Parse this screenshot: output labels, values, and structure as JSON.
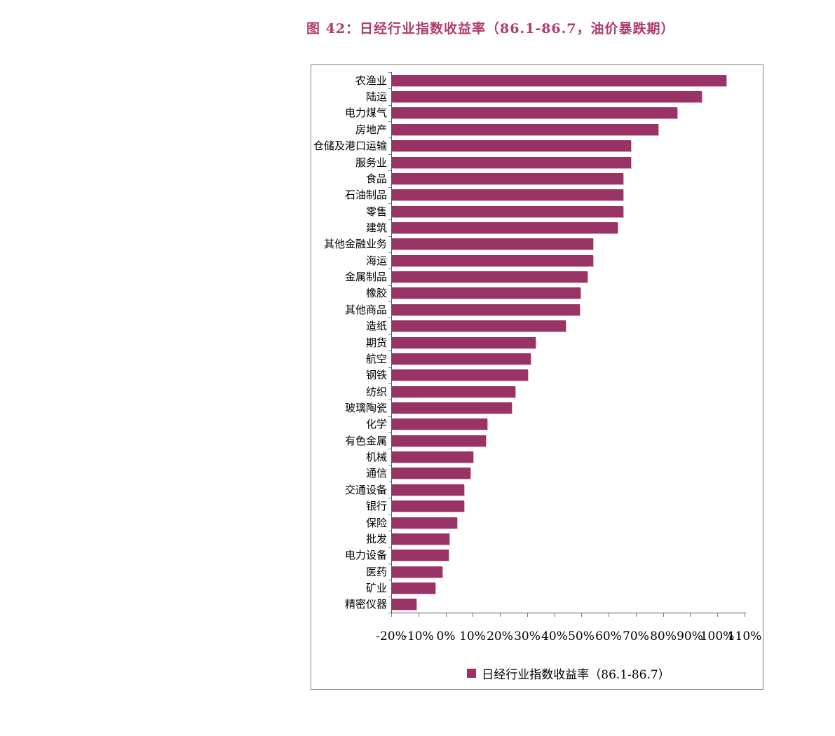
{
  "title": "图  42：日经行业指数收益率（86.1-86.7，油价暴跌期）",
  "colors": {
    "bar": "#993366",
    "bar_edge": "#E2B2CD",
    "title": "#B03A6B",
    "axis": "#595959",
    "tick": "#808080",
    "text": "#000000",
    "box_border": "#808080"
  },
  "legend": {
    "label": "日经行业指数收益率（86.1-86.7）"
  },
  "chart_data": {
    "type": "bar",
    "orientation": "horizontal",
    "title": "图  42：日经行业指数收益率（86.1-86.7，油价暴跌期）",
    "series_name": "日经行业指数收益率（86.1-86.7）",
    "unit": "%",
    "categories": [
      "农渔业",
      "陆运",
      "电力煤气",
      "房地产",
      "仓储及港口运输",
      "服务业",
      "食品",
      "石油制品",
      "零售",
      "建筑",
      "其他金融业务",
      "海运",
      "金属制品",
      "橡胶",
      "其他商品",
      "造纸",
      "期货",
      "航空",
      "钢铁",
      "纺织",
      "玻璃陶瓷",
      "化学",
      "有色金属",
      "机械",
      "通信",
      "交通设备",
      "银行",
      "保险",
      "批发",
      "电力设备",
      "医药",
      "矿业",
      "精密仪器"
    ],
    "values": [
      103,
      94,
      85,
      78,
      68,
      68,
      65,
      65,
      65,
      63,
      54,
      54,
      52,
      49.5,
      49,
      44,
      33,
      31,
      30,
      25.5,
      24,
      15,
      14.5,
      10,
      9,
      6.5,
      6.5,
      4,
      1.2,
      0.8,
      -1.5,
      -4,
      -11
    ],
    "xlim": [
      -20,
      110
    ],
    "x_tick_step": 10,
    "x_ticks": [
      "-20%",
      "-10%",
      "0%",
      "10%",
      "20%",
      "30%",
      "40%",
      "50%",
      "60%",
      "70%",
      "80%",
      "90%",
      "100%",
      "110%"
    ],
    "bar_base": -20,
    "grid": false,
    "legend_position": "bottom"
  }
}
